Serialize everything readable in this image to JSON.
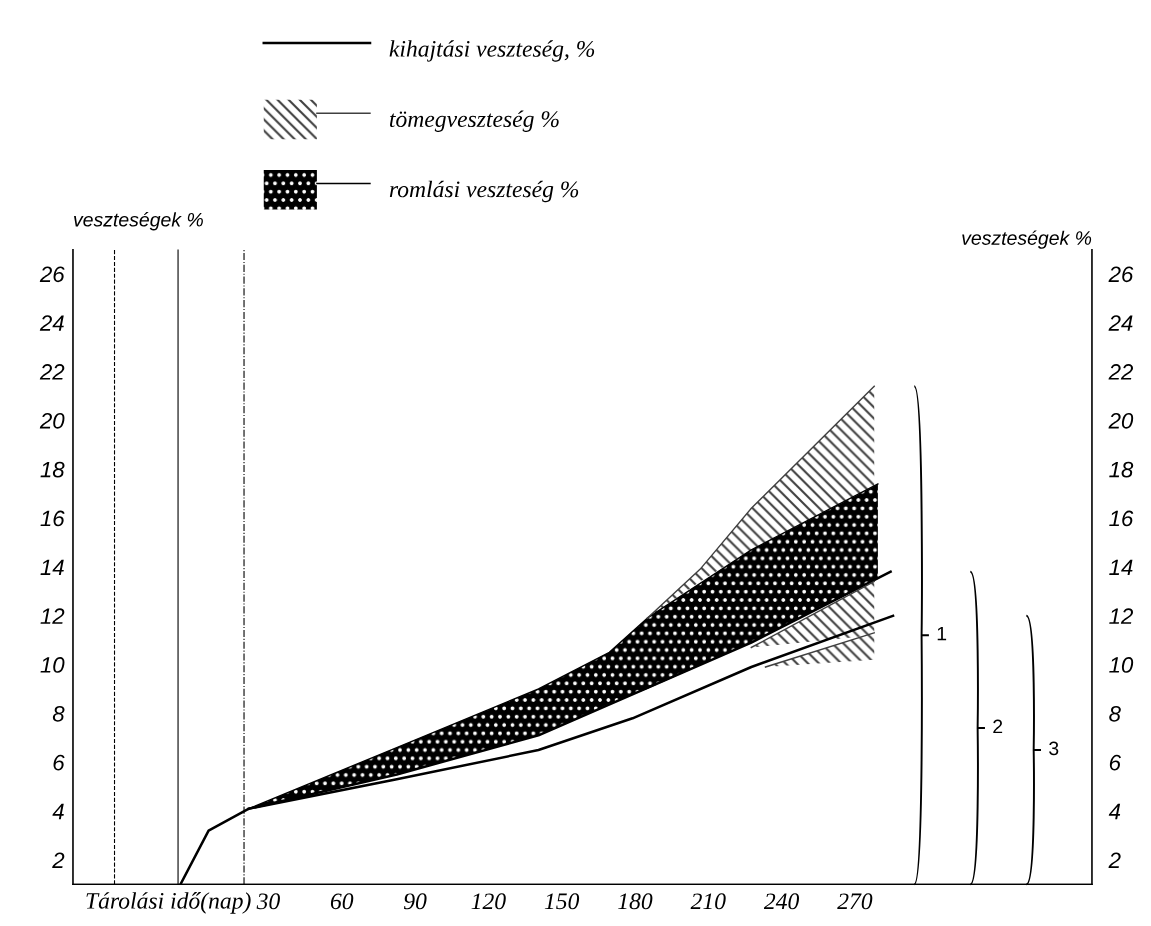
{
  "chart_data": {
    "type": "line",
    "xlabel": "Tárolási idő(nap)",
    "ylabel": "veszteségek %",
    "y2label": "veszteségek %",
    "xlim": [
      -50,
      367
    ],
    "xticks": [
      30,
      60,
      90,
      120,
      150,
      180,
      210,
      240,
      270
    ],
    "ylim": [
      1,
      27
    ],
    "yticks": [
      2,
      4,
      6,
      8,
      10,
      12,
      14,
      16,
      18,
      20,
      22,
      24,
      26
    ],
    "y2lim": [
      1,
      27
    ],
    "y2ticks": [
      2,
      4,
      6,
      8,
      10,
      12,
      14,
      16,
      18,
      20,
      22,
      24,
      26
    ],
    "legend": "top",
    "grid": false,
    "series": [
      {
        "name": "kihajtási veszteség, %",
        "color": "#000000",
        "x": [
          -6,
          5.5,
          22,
          82.5,
          140.5,
          179,
          227.6,
          285.6
        ],
        "values": [
          1,
          3.2,
          4.1,
          5.3,
          6.5,
          7.8,
          9.9,
          12.0
        ]
      },
      {
        "color": "#000000",
        "x": [
          22,
          82.5,
          140.5,
          227.6,
          284.6
        ],
        "values": [
          4.1,
          5.5,
          7.1,
          10.9,
          13.8
        ]
      },
      {
        "name": "tömegveszteség %",
        "color": "#404040",
        "x": [
          227.6,
          277.9
        ],
        "values": [
          10.7,
          13.4
        ],
        "upper": [
          10.7,
          13.4
        ],
        "lower": [
          10.7,
          11.2
        ]
      },
      {
        "name": "romlási veszteség %",
        "color": "#000000",
        "x": [
          22,
          82.5,
          140.5,
          169.5,
          185,
          227.6,
          279.4
        ],
        "values": [
          4.1,
          6.6,
          9.0,
          10.5,
          11.9,
          14.7,
          17.4
        ],
        "upper": [
          4.1,
          6.6,
          9.0,
          10.5,
          11.9,
          14.7,
          17.4
        ],
        "lower": [
          4.1,
          5.5,
          7.1,
          8.4,
          9.0,
          10.9,
          13.5
        ]
      },
      {
        "color": "#404040",
        "x": [
          185,
          206.6,
          227.6,
          277.9
        ],
        "values": [
          11.9,
          13.9,
          16.4,
          21.4
        ],
        "upper": [
          11.9,
          13.9,
          16.4,
          21.4
        ],
        "lower": [
          11.9,
          13.4,
          14.7,
          17.3
        ]
      },
      {
        "color": "#404040",
        "x": [
          233.4,
          277.9
        ],
        "values": [
          9.9,
          11.3
        ],
        "upper": [
          9.9,
          11.3
        ],
        "lower": [
          9.9,
          10.2
        ]
      }
    ],
    "ref_lines": [
      {
        "axis": "x",
        "value": -33,
        "line_style": "dashed",
        "color": "#000000"
      },
      {
        "axis": "x",
        "value": -7,
        "line_style": "solid",
        "color": "#000000"
      },
      {
        "axis": "x",
        "value": 20,
        "line_style": "dashdot",
        "color": "#000000"
      }
    ],
    "annotations": [
      "1",
      "2",
      "3"
    ]
  }
}
